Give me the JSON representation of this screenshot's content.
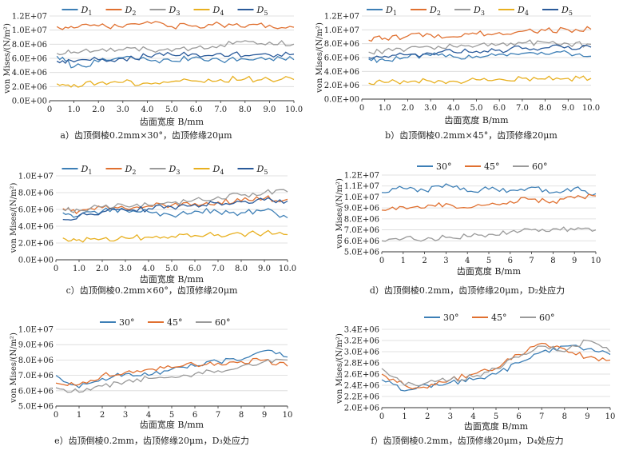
{
  "palette": {
    "D1": "#3d7fb6",
    "D2": "#e07030",
    "D3": "#9a9a9a",
    "D4": "#e8b020",
    "D5": "#2a5a9a",
    "grid": "#d8d8d8",
    "axis": "#333333"
  },
  "chart_data": [
    {
      "type": "line",
      "caption": "a）齿顶倒棱0.2mm×30°，齿顶修缘20μm",
      "xlabel": "齿面宽度 B/mm",
      "ylabel": "von Mises/(N/m²)",
      "ylim": [
        0,
        12000000
      ],
      "yticks": [
        0,
        2000000,
        4000000,
        6000000,
        8000000,
        10000000,
        12000000
      ],
      "yticklabels": [
        "0.0E+00",
        "2.0E+06",
        "4.0E+06",
        "6.0E+06",
        "8.0E+06",
        "1.0E+07",
        "1.2E+07"
      ],
      "xlim": [
        0,
        10
      ],
      "xticks": [
        0,
        1,
        2,
        3,
        4,
        5,
        6,
        7,
        8,
        9,
        10
      ],
      "xticklabels": [
        "0",
        "1.0",
        "2.0",
        "3.0",
        "4.0",
        "5.0",
        "6.0",
        "7.0",
        "8.0",
        "9.0",
        "10.0"
      ],
      "legend_position": "top",
      "series": [
        {
          "name": "D1",
          "color": "#3d7fb6",
          "x": [
            0.3,
            1,
            2,
            3,
            4,
            5,
            6,
            7,
            8,
            9,
            10
          ],
          "y": [
            6300000,
            4800000,
            5500000,
            6100000,
            5800000,
            5600000,
            6200000,
            5700000,
            5900000,
            6000000,
            5800000
          ]
        },
        {
          "name": "D2",
          "color": "#e07030",
          "x": [
            0.3,
            1,
            2,
            3,
            4,
            5,
            6,
            7,
            8,
            9,
            10
          ],
          "y": [
            10500000,
            10300000,
            10600000,
            10400000,
            11200000,
            10500000,
            10600000,
            10800000,
            10400000,
            10700000,
            10400000
          ]
        },
        {
          "name": "D3",
          "color": "#9a9a9a",
          "x": [
            0.3,
            1,
            2,
            3,
            4,
            5,
            6,
            7,
            8,
            9,
            10
          ],
          "y": [
            6700000,
            6900000,
            7100000,
            7200000,
            7300000,
            7000000,
            7500000,
            7900000,
            8500000,
            8300000,
            8000000
          ]
        },
        {
          "name": "D4",
          "color": "#e8b020",
          "x": [
            0.3,
            1,
            2,
            3,
            4,
            5,
            6,
            7,
            8,
            9,
            10
          ],
          "y": [
            2400000,
            2300000,
            2500000,
            2600000,
            2500000,
            2700000,
            2800000,
            3000000,
            3100000,
            3000000,
            3000000
          ]
        },
        {
          "name": "D5",
          "color": "#2a5a9a",
          "x": [
            0.3,
            1,
            2,
            3,
            4,
            5,
            6,
            7,
            8,
            9,
            10
          ],
          "y": [
            5600000,
            5500000,
            5800000,
            6000000,
            6300000,
            6500000,
            6600000,
            6700000,
            6400000,
            6500000,
            6600000
          ]
        }
      ]
    },
    {
      "type": "line",
      "caption": "b）齿顶倒棱0.2mm×45°，齿顶修缘20μm",
      "xlabel": "齿面宽度 B/mm",
      "ylabel": "von Mises/(N/m²)",
      "ylim": [
        0,
        12000000
      ],
      "yticks": [
        0,
        2000000,
        4000000,
        6000000,
        8000000,
        10000000,
        12000000
      ],
      "yticklabels": [
        "0.0E+00",
        "2.0E+06",
        "4.0E+06",
        "6.0E+06",
        "8.0E+06",
        "1.0E+07",
        "1.2E+07"
      ],
      "xlim": [
        0,
        10
      ],
      "xticks": [
        0,
        1,
        2,
        3,
        4,
        5,
        6,
        7,
        8,
        9,
        10
      ],
      "xticklabels": [
        "0",
        "1.0",
        "2.0",
        "3.0",
        "4.0",
        "5.0",
        "6.0",
        "7.0",
        "8.0",
        "9.0",
        "10.0"
      ],
      "legend_position": "top",
      "series": [
        {
          "name": "D1",
          "color": "#3d7fb6",
          "x": [
            0.3,
            1,
            2,
            3,
            4,
            5,
            6,
            7,
            8,
            9,
            10
          ],
          "y": [
            5800000,
            5600000,
            6000000,
            6300000,
            6100000,
            6200000,
            6500000,
            6600000,
            6500000,
            6700000,
            6200000
          ]
        },
        {
          "name": "D2",
          "color": "#e07030",
          "x": [
            0.3,
            1,
            2,
            3,
            4,
            5,
            6,
            7,
            8,
            9,
            10
          ],
          "y": [
            8500000,
            8800000,
            9100000,
            9300000,
            9000000,
            9400000,
            9600000,
            9800000,
            9900000,
            10000000,
            10100000
          ]
        },
        {
          "name": "D3",
          "color": "#9a9a9a",
          "x": [
            0.3,
            1,
            2,
            3,
            4,
            5,
            6,
            7,
            8,
            9,
            10
          ],
          "y": [
            6800000,
            7000000,
            7300000,
            7500000,
            7600000,
            7700000,
            7900000,
            8100000,
            8200000,
            8000000,
            7900000
          ]
        },
        {
          "name": "D4",
          "color": "#e8b020",
          "x": [
            0.3,
            1,
            2,
            3,
            4,
            5,
            6,
            7,
            8,
            9,
            10
          ],
          "y": [
            2300000,
            2400000,
            2400000,
            2600000,
            2600000,
            2800000,
            2900000,
            3000000,
            2900000,
            3000000,
            3000000
          ]
        },
        {
          "name": "D5",
          "color": "#2a5a9a",
          "x": [
            0.3,
            1,
            2,
            3,
            4,
            5,
            6,
            7,
            8,
            9,
            10
          ],
          "y": [
            6000000,
            6200000,
            6400000,
            6600000,
            6800000,
            6900000,
            7100000,
            7300000,
            7400000,
            7600000,
            7500000
          ]
        }
      ]
    },
    {
      "type": "line",
      "caption": "c）齿顶倒棱0.2mm×60°，齿顶修缘20μm",
      "xlabel": "齿面宽度 B/mm",
      "ylabel": "von Mises/(N/m²)",
      "ylim": [
        0,
        10000000
      ],
      "yticks": [
        0,
        2000000,
        4000000,
        6000000,
        8000000,
        10000000
      ],
      "yticklabels": [
        "0.0E+00",
        "2.0E+06",
        "4.0E+06",
        "6.0E+06",
        "8.0E+06",
        "1.0E+07"
      ],
      "xlim": [
        0,
        10
      ],
      "xticks": [
        0,
        1,
        2,
        3,
        4,
        5,
        6,
        7,
        8,
        9,
        10
      ],
      "xticklabels": [
        "0",
        "1.0",
        "2.0",
        "3.0",
        "4.0",
        "5.0",
        "6.0",
        "7.0",
        "8.0",
        "9.0",
        "10.0"
      ],
      "legend_position": "top",
      "series": [
        {
          "name": "D1",
          "color": "#3d7fb6",
          "x": [
            0.3,
            1,
            2,
            3,
            4,
            5,
            6,
            7,
            8,
            9,
            10
          ],
          "y": [
            5600000,
            5200000,
            5800000,
            5900000,
            5700000,
            5300000,
            5800000,
            5700000,
            5600000,
            5900000,
            5000000
          ]
        },
        {
          "name": "D2",
          "color": "#e07030",
          "x": [
            0.3,
            1,
            2,
            3,
            4,
            5,
            6,
            7,
            8,
            9,
            10
          ],
          "y": [
            6100000,
            5800000,
            6200000,
            6100000,
            6400000,
            6500000,
            6700000,
            6900000,
            7000000,
            7300000,
            7200000
          ]
        },
        {
          "name": "D3",
          "color": "#9a9a9a",
          "x": [
            0.3,
            1,
            2,
            3,
            4,
            5,
            6,
            7,
            8,
            9,
            10
          ],
          "y": [
            6000000,
            5900000,
            6300000,
            6400000,
            6500000,
            6800000,
            7200000,
            7500000,
            7700000,
            8000000,
            8100000
          ]
        },
        {
          "name": "D4",
          "color": "#e8b020",
          "x": [
            0.3,
            1,
            2,
            3,
            4,
            5,
            6,
            7,
            8,
            9,
            10
          ],
          "y": [
            2600000,
            2400000,
            2500000,
            2600000,
            2700000,
            2800000,
            2900000,
            3000000,
            3100000,
            3200000,
            3000000
          ]
        },
        {
          "name": "D5",
          "color": "#2a5a9a",
          "x": [
            0.3,
            1,
            2,
            3,
            4,
            5,
            6,
            7,
            8,
            9,
            10
          ],
          "y": [
            4800000,
            5300000,
            5700000,
            5900000,
            6100000,
            6300000,
            6600000,
            6800000,
            6900000,
            7100000,
            7000000
          ]
        }
      ]
    },
    {
      "type": "line",
      "caption": "d）齿顶倒棱0.2mm，齿顶修缘20μm，D₂处应力",
      "xlabel": "齿面宽度 B/mm",
      "ylabel": "von Mises/(N/m²)",
      "ylim": [
        5000000,
        12000000
      ],
      "yticks": [
        5000000,
        6000000,
        7000000,
        8000000,
        9000000,
        10000000,
        11000000,
        12000000
      ],
      "yticklabels": [
        "5.0E+06",
        "6.0E+06",
        "7.0E+06",
        "8.0E+06",
        "9.0E+06",
        "1.0E+07",
        "1.1E+07",
        "1.2E+07"
      ],
      "xlim": [
        0,
        10
      ],
      "xticks": [
        0,
        1,
        2,
        3,
        4,
        5,
        6,
        7,
        8,
        9,
        10
      ],
      "xticklabels": [
        "0",
        "1",
        "2",
        "3",
        "4",
        "5",
        "6",
        "7",
        "8",
        "9",
        "10"
      ],
      "legend_position": "top",
      "series": [
        {
          "name": "30°",
          "color": "#3d7fb6",
          "x": [
            0,
            1,
            2,
            3,
            4,
            5,
            6,
            7,
            8,
            9,
            10
          ],
          "y": [
            10400000,
            10800000,
            10600000,
            11200000,
            10500000,
            10700000,
            10600000,
            10900000,
            10400000,
            10800000,
            10300000
          ]
        },
        {
          "name": "45°",
          "color": "#e07030",
          "x": [
            0,
            1,
            2,
            3,
            4,
            5,
            6,
            7,
            8,
            9,
            10
          ],
          "y": [
            8800000,
            9100000,
            9000000,
            9400000,
            9000000,
            9300000,
            9600000,
            9800000,
            9600000,
            9900000,
            10100000
          ]
        },
        {
          "name": "60°",
          "color": "#9a9a9a",
          "x": [
            0,
            1,
            2,
            3,
            4,
            5,
            6,
            7,
            8,
            9,
            10
          ],
          "y": [
            6000000,
            6200000,
            6100000,
            6300000,
            6400000,
            6600000,
            6800000,
            7000000,
            7100000,
            7000000,
            7000000
          ]
        }
      ]
    },
    {
      "type": "line",
      "caption": "e）齿顶倒棱0.2mm，齿顶修缘20μm，D₃处应力",
      "xlabel": "齿面宽度 B/mm",
      "ylabel": "von Mises/(N/m²)",
      "ylim": [
        5000000,
        10000000
      ],
      "yticks": [
        5000000,
        6000000,
        7000000,
        8000000,
        9000000,
        10000000
      ],
      "yticklabels": [
        "5.0E+06",
        "6.0E+06",
        "7.0E+06",
        "8.0E+06",
        "9.0E+06",
        "1.0E+07"
      ],
      "xlim": [
        0,
        10
      ],
      "xticks": [
        0,
        1,
        2,
        3,
        4,
        5,
        6,
        7,
        8,
        9,
        10
      ],
      "xticklabels": [
        "0",
        "1",
        "2",
        "3",
        "4",
        "5",
        "6",
        "7",
        "8",
        "9",
        "10"
      ],
      "legend_position": "top",
      "series": [
        {
          "name": "30°",
          "color": "#3d7fb6",
          "x": [
            0,
            1,
            2,
            3,
            4,
            5,
            6,
            7,
            8,
            9,
            10
          ],
          "y": [
            7000000,
            6200000,
            6800000,
            7100000,
            7000000,
            7400000,
            7600000,
            7900000,
            8000000,
            8600000,
            8200000
          ]
        },
        {
          "name": "45°",
          "color": "#e07030",
          "x": [
            0,
            1,
            2,
            3,
            4,
            5,
            6,
            7,
            8,
            9,
            10
          ],
          "y": [
            6500000,
            6400000,
            7000000,
            7200000,
            7400000,
            7500000,
            7700000,
            7800000,
            7900000,
            8000000,
            7600000
          ]
        },
        {
          "name": "60°",
          "color": "#9a9a9a",
          "x": [
            0,
            1,
            2,
            3,
            4,
            5,
            6,
            7,
            8,
            9,
            10
          ],
          "y": [
            6200000,
            5900000,
            6300000,
            6600000,
            6800000,
            6900000,
            7100000,
            7300000,
            7600000,
            7900000,
            8000000
          ]
        }
      ]
    },
    {
      "type": "line",
      "caption": "f）齿顶倒棱0.2mm，齿顶修缘20μm，D₄处应力",
      "xlabel": "齿面宽度 B/mm",
      "ylabel": "von Mises/(N/m²)",
      "ylim": [
        2000000,
        3400000
      ],
      "yticks": [
        2000000,
        2200000,
        2400000,
        2600000,
        2800000,
        3000000,
        3200000,
        3400000
      ],
      "yticklabels": [
        "2.0E+06",
        "2.2E+06",
        "2.4E+06",
        "2.6E+06",
        "2.8E+06",
        "3.0E+06",
        "3.2E+06",
        "3.4E+06"
      ],
      "xlim": [
        0,
        10
      ],
      "xticks": [
        0,
        1,
        2,
        3,
        4,
        5,
        6,
        7,
        8,
        9,
        10
      ],
      "xticklabels": [
        "0",
        "1",
        "2",
        "3",
        "4",
        "5",
        "6",
        "7",
        "8",
        "9",
        "10"
      ],
      "legend_position": "top",
      "series": [
        {
          "name": "30°",
          "color": "#3d7fb6",
          "x": [
            0,
            1,
            2,
            3,
            4,
            5,
            6,
            7,
            8,
            9,
            10
          ],
          "y": [
            2500000,
            2300000,
            2400000,
            2450000,
            2500000,
            2600000,
            2800000,
            3000000,
            3100000,
            3050000,
            2950000
          ]
        },
        {
          "name": "45°",
          "color": "#e07030",
          "x": [
            0,
            1,
            2,
            3,
            4,
            5,
            6,
            7,
            8,
            9,
            10
          ],
          "y": [
            2600000,
            2400000,
            2350000,
            2500000,
            2600000,
            2700000,
            2950000,
            3150000,
            3050000,
            2900000,
            2850000
          ]
        },
        {
          "name": "60°",
          "color": "#9a9a9a",
          "x": [
            0,
            1,
            2,
            3,
            4,
            5,
            6,
            7,
            8,
            9,
            10
          ],
          "y": [
            2700000,
            2400000,
            2450000,
            2500000,
            2550000,
            2700000,
            2900000,
            3100000,
            3000000,
            3200000,
            3000000
          ]
        }
      ]
    }
  ]
}
